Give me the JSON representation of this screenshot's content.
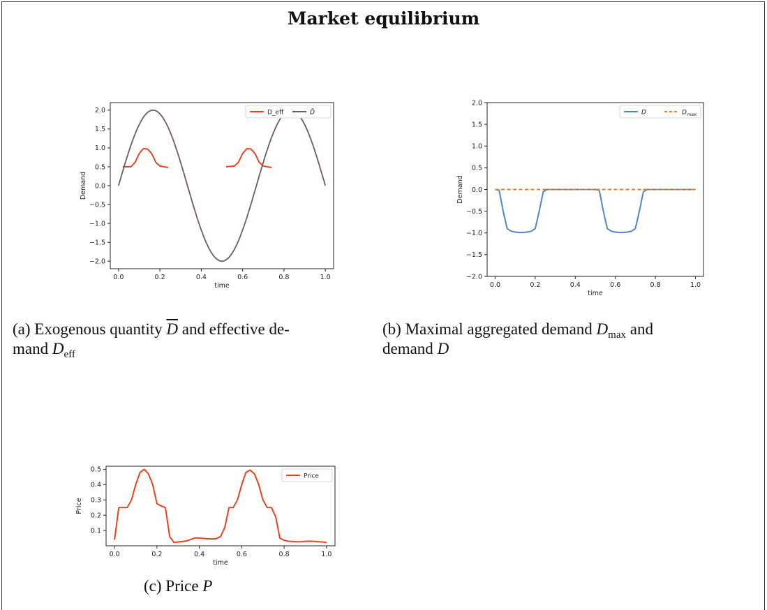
{
  "page_title": "Market equilibrium",
  "captions": {
    "a": {
      "part1": "(a) Exogenous quantity ",
      "dbar": "D",
      "part2": " and effective de-",
      "part3": "mand ",
      "d": "D",
      "sub": "eff"
    },
    "b": {
      "part1": "(b) Maximal aggregated demand ",
      "d": "D",
      "sub": "max",
      "part2": " and",
      "part3": "demand ",
      "d2": "D"
    },
    "c": {
      "part1": "(c) Price ",
      "p": "P"
    }
  },
  "colors": {
    "red": "#e8441c",
    "gray": "#6e5c5b",
    "blue": "#4f86c6",
    "orange": "#f07d1a"
  },
  "chart_data": [
    {
      "id": "a",
      "type": "line",
      "xlabel": "time",
      "ylabel": "Demand",
      "xlim": [
        -0.04,
        1.04
      ],
      "ylim": [
        -2.2,
        2.2
      ],
      "xticks": [
        0.0,
        0.2,
        0.4,
        0.6,
        0.8,
        1.0
      ],
      "xtick_labels": [
        "0.0",
        "0.2",
        "0.4",
        "0.6",
        "0.8",
        "1.0"
      ],
      "yticks": [
        -2.0,
        -1.5,
        -1.0,
        -0.5,
        0.0,
        0.5,
        1.0,
        1.5,
        2.0
      ],
      "ytick_labels": [
        "−2.0",
        "−1.5",
        "−1.0",
        "−0.5",
        "0.0",
        "0.5",
        "1.0",
        "1.5",
        "2.0"
      ],
      "legend": "top-right",
      "series": [
        {
          "name": "D_eff",
          "color": "#e8441c",
          "dash": false,
          "x": [
            0.02,
            0.06,
            0.08,
            0.1,
            0.12,
            0.14,
            0.16,
            0.18,
            0.2,
            0.22,
            0.24,
            null,
            0.52,
            0.56,
            0.58,
            0.6,
            0.62,
            0.64,
            0.66,
            0.68,
            0.7,
            0.72,
            0.74
          ],
          "y": [
            0.5,
            0.5,
            0.62,
            0.85,
            0.98,
            0.97,
            0.85,
            0.62,
            0.52,
            0.5,
            0.48,
            null,
            0.5,
            0.52,
            0.62,
            0.85,
            0.98,
            0.97,
            0.85,
            0.62,
            0.52,
            0.5,
            0.48
          ]
        },
        {
          "name": "D̄",
          "color": "#6e5c5b",
          "dash": false,
          "fn": "2*sin(3*pi*x)"
        }
      ]
    },
    {
      "id": "b",
      "type": "line",
      "xlabel": "time",
      "ylabel": "Demand",
      "xlim": [
        -0.04,
        1.04
      ],
      "ylim": [
        -2.0,
        2.0
      ],
      "xticks": [
        0.0,
        0.2,
        0.4,
        0.6,
        0.8,
        1.0
      ],
      "xtick_labels": [
        "0.0",
        "0.2",
        "0.4",
        "0.6",
        "0.8",
        "1.0"
      ],
      "yticks": [
        -2.0,
        -1.5,
        -1.0,
        -0.5,
        0.0,
        0.5,
        1.0,
        1.5,
        2.0
      ],
      "ytick_labels": [
        "−2.0",
        "−1.5",
        "−1.0",
        "−0.5",
        "0.0",
        "0.5",
        "1.0",
        "1.5",
        "2.0"
      ],
      "legend": "top-right",
      "series": [
        {
          "name": "D",
          "color": "#4f86c6",
          "dash": false,
          "x": [
            0.0,
            0.02,
            0.04,
            0.06,
            0.08,
            0.1,
            0.12,
            0.14,
            0.16,
            0.18,
            0.2,
            0.22,
            0.24,
            0.26,
            0.5,
            0.52,
            0.54,
            0.56,
            0.58,
            0.6,
            0.62,
            0.64,
            0.66,
            0.68,
            0.7,
            0.72,
            0.74,
            0.76,
            1.0
          ],
          "y": [
            0.0,
            -0.02,
            -0.5,
            -0.9,
            -0.96,
            -0.98,
            -0.99,
            -0.99,
            -0.98,
            -0.96,
            -0.9,
            -0.5,
            -0.05,
            0.0,
            0.0,
            -0.02,
            -0.5,
            -0.9,
            -0.96,
            -0.98,
            -0.99,
            -0.99,
            -0.98,
            -0.96,
            -0.9,
            -0.5,
            -0.05,
            0.0,
            0.0
          ]
        },
        {
          "name": "D",
          "sub": "max",
          "color": "#f07d1a",
          "dash": true,
          "x": [
            0.0,
            1.0
          ],
          "y": [
            0.0,
            0.0
          ]
        }
      ]
    },
    {
      "id": "c",
      "type": "line",
      "xlabel": "time",
      "ylabel": "Price",
      "xlim": [
        -0.04,
        1.04
      ],
      "ylim": [
        0.0,
        0.52
      ],
      "xticks": [
        0.0,
        0.2,
        0.4,
        0.6,
        0.8,
        1.0
      ],
      "xtick_labels": [
        "0.0",
        "0.2",
        "0.4",
        "0.6",
        "0.8",
        "1.0"
      ],
      "yticks": [
        0.1,
        0.2,
        0.3,
        0.4,
        0.5
      ],
      "ytick_labels": [
        "0.1",
        "0.2",
        "0.3",
        "0.4",
        "0.5"
      ],
      "legend": "top-right",
      "series": [
        {
          "name": "Price",
          "color": "#e8441c",
          "dash": false,
          "x": [
            0.0,
            0.02,
            0.04,
            0.06,
            0.08,
            0.1,
            0.12,
            0.14,
            0.16,
            0.18,
            0.2,
            0.22,
            0.24,
            0.26,
            0.28,
            0.3,
            0.32,
            0.34,
            0.36,
            0.38,
            0.4,
            0.42,
            0.44,
            0.46,
            0.48,
            0.5,
            0.52,
            0.54,
            0.56,
            0.58,
            0.6,
            0.62,
            0.64,
            0.66,
            0.68,
            0.7,
            0.72,
            0.74,
            0.76,
            0.78,
            0.8,
            0.82,
            0.84,
            0.86,
            0.88,
            0.9,
            0.92,
            0.94,
            0.96,
            0.98,
            1.0
          ],
          "y": [
            0.04,
            0.25,
            0.25,
            0.25,
            0.3,
            0.4,
            0.48,
            0.5,
            0.47,
            0.4,
            0.275,
            0.26,
            0.25,
            0.06,
            0.022,
            0.025,
            0.028,
            0.032,
            0.042,
            0.052,
            0.05,
            0.048,
            0.046,
            0.045,
            0.047,
            0.06,
            0.12,
            0.25,
            0.25,
            0.3,
            0.4,
            0.48,
            0.495,
            0.47,
            0.4,
            0.3,
            0.25,
            0.25,
            0.19,
            0.05,
            0.035,
            0.03,
            0.028,
            0.026,
            0.027,
            0.029,
            0.03,
            0.029,
            0.027,
            0.025,
            0.022
          ]
        }
      ]
    }
  ]
}
